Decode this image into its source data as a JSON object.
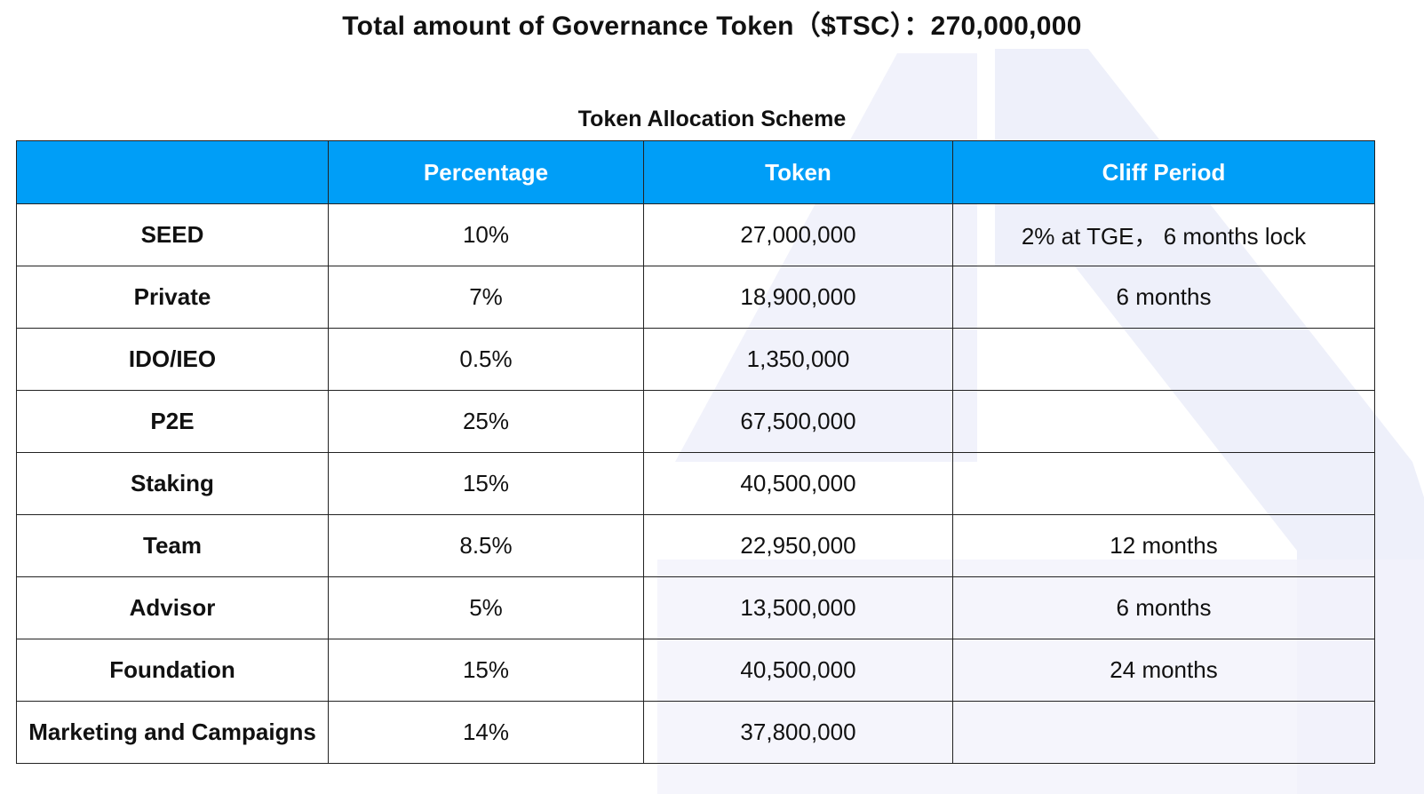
{
  "header": {
    "title": "Total amount of Governance Token（$TSC）：270,000,000"
  },
  "table": {
    "caption": "Token Allocation Scheme",
    "columns": [
      "",
      "Percentage",
      "Token",
      "Cliff Period"
    ],
    "rows": [
      {
        "name": "SEED",
        "percentage": "10%",
        "token": "27,000,000",
        "cliff": "2% at TGE， 6 months lock"
      },
      {
        "name": "Private",
        "percentage": "7%",
        "token": "18,900,000",
        "cliff": "6 months"
      },
      {
        "name": "IDO/IEO",
        "percentage": "0.5%",
        "token": "1,350,000",
        "cliff": ""
      },
      {
        "name": "P2E",
        "percentage": "25%",
        "token": "67,500,000",
        "cliff": ""
      },
      {
        "name": "Staking",
        "percentage": "15%",
        "token": "40,500,000",
        "cliff": ""
      },
      {
        "name": "Team",
        "percentage": "8.5%",
        "token": "22,950,000",
        "cliff": "12 months"
      },
      {
        "name": "Advisor",
        "percentage": "5%",
        "token": "13,500,000",
        "cliff": "6 months"
      },
      {
        "name": "Foundation",
        "percentage": "15%",
        "token": "40,500,000",
        "cliff": "24 months"
      },
      {
        "name": "Marketing and Campaigns",
        "percentage": "14%",
        "token": "37,800,000",
        "cliff": ""
      }
    ]
  },
  "colors": {
    "header_bg": "#009ef7",
    "header_text": "#ffffff",
    "watermark": "#eef0fa"
  }
}
